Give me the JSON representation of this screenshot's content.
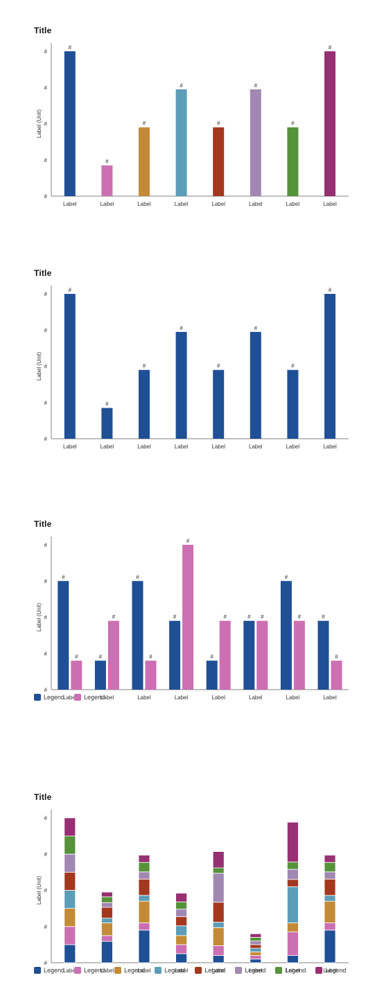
{
  "colors": [
    "#1f5096",
    "#cc6fb3",
    "#c38b37",
    "#5c9db8",
    "#a3381f",
    "#a188b3",
    "#55923a",
    "#973072"
  ],
  "charts": [
    {
      "title": "Title",
      "legend": []
    },
    {
      "title": "Title",
      "legend": []
    },
    {
      "title": "Title",
      "legend": [
        "Legend",
        "Legend"
      ]
    },
    {
      "title": "Title",
      "legend": [
        "Legend",
        "Legend",
        "Legend",
        "Legend",
        "Legend",
        "Legend",
        "Legend",
        "Legend"
      ]
    }
  ],
  "chart_data": [
    {
      "type": "bar",
      "title": "Title",
      "ylabel": "Label (Unit)",
      "xlabel": "",
      "ytick_labels": [
        "#",
        "#",
        "#",
        "#",
        "#"
      ],
      "ylim": [
        0,
        4
      ],
      "categories": [
        "Label",
        "Label",
        "Label",
        "Label",
        "Label",
        "Label",
        "Label",
        "Label"
      ],
      "values": [
        4,
        0.85,
        1.9,
        2.95,
        1.9,
        2.95,
        1.9,
        4
      ],
      "data_labels": [
        "#",
        "#",
        "#",
        "#",
        "#",
        "#",
        "#",
        "#"
      ],
      "bar_colors": "per-category"
    },
    {
      "type": "bar",
      "title": "Title",
      "ylabel": "Label (Unit)",
      "xlabel": "",
      "ytick_labels": [
        "#",
        "#",
        "#",
        "#",
        "#"
      ],
      "ylim": [
        0,
        4
      ],
      "categories": [
        "Label",
        "Label",
        "Label",
        "Label",
        "Label",
        "Label",
        "Label",
        "Label"
      ],
      "values": [
        4,
        0.85,
        1.9,
        2.95,
        1.9,
        2.95,
        1.9,
        4
      ],
      "data_labels": [
        "#",
        "#",
        "#",
        "#",
        "#",
        "#",
        "#",
        "#"
      ],
      "bar_colors": "single"
    },
    {
      "type": "bar",
      "mode": "grouped",
      "title": "Title",
      "ylabel": "Label (Unit)",
      "xlabel": "",
      "ytick_labels": [
        "#",
        "#",
        "#",
        "#",
        "#"
      ],
      "ylim": [
        0,
        4
      ],
      "categories": [
        "Label",
        "Label",
        "Label",
        "Label",
        "Label",
        "Label",
        "Label",
        "Label"
      ],
      "series": [
        {
          "name": "Legend",
          "values": [
            3,
            0.8,
            3,
            1.9,
            0.8,
            1.9,
            3,
            1.9
          ],
          "data_labels": [
            "#",
            "#",
            "#",
            "#",
            "#",
            "#",
            "#",
            "#"
          ]
        },
        {
          "name": "Legend",
          "values": [
            0.8,
            1.9,
            0.8,
            4,
            1.9,
            1.9,
            1.9,
            0.8
          ],
          "data_labels": [
            "#",
            "#",
            "#",
            "#",
            "#",
            "#",
            "#",
            "#"
          ]
        }
      ],
      "legend_position": "bottom-left"
    },
    {
      "type": "bar",
      "mode": "stacked",
      "title": "Title",
      "ylabel": "Label (Unit)",
      "xlabel": "",
      "ytick_labels": [
        "#",
        "#",
        "#",
        "#",
        "#"
      ],
      "ylim": [
        0,
        4
      ],
      "categories": [
        "Label",
        "Label",
        "Label",
        "Label",
        "Label",
        "Label",
        "Label",
        "Label"
      ],
      "series": [
        {
          "name": "Legend",
          "values": [
            0.5,
            0.59,
            0.9,
            0.25,
            0.2,
            0.1,
            0.2,
            0.9
          ]
        },
        {
          "name": "Legend",
          "values": [
            0.5,
            0.16,
            0.2,
            0.25,
            0.27,
            0.1,
            0.65,
            0.2
          ]
        },
        {
          "name": "Legend",
          "values": [
            0.5,
            0.35,
            0.6,
            0.25,
            0.5,
            0.1,
            0.25,
            0.6
          ]
        },
        {
          "name": "Legend",
          "values": [
            0.5,
            0.13,
            0.16,
            0.27,
            0.15,
            0.1,
            1.0,
            0.16
          ]
        },
        {
          "name": "Legend",
          "values": [
            0.5,
            0.3,
            0.45,
            0.25,
            0.55,
            0.1,
            0.2,
            0.45
          ]
        },
        {
          "name": "Legend",
          "values": [
            0.5,
            0.13,
            0.2,
            0.21,
            0.8,
            0.1,
            0.28,
            0.2
          ]
        },
        {
          "name": "Legend",
          "values": [
            0.5,
            0.16,
            0.26,
            0.2,
            0.15,
            0.1,
            0.2,
            0.26
          ]
        },
        {
          "name": "Legend",
          "values": [
            0.5,
            0.13,
            0.2,
            0.24,
            0.45,
            0.1,
            1.1,
            0.2
          ]
        }
      ],
      "legend_position": "bottom-left"
    }
  ]
}
